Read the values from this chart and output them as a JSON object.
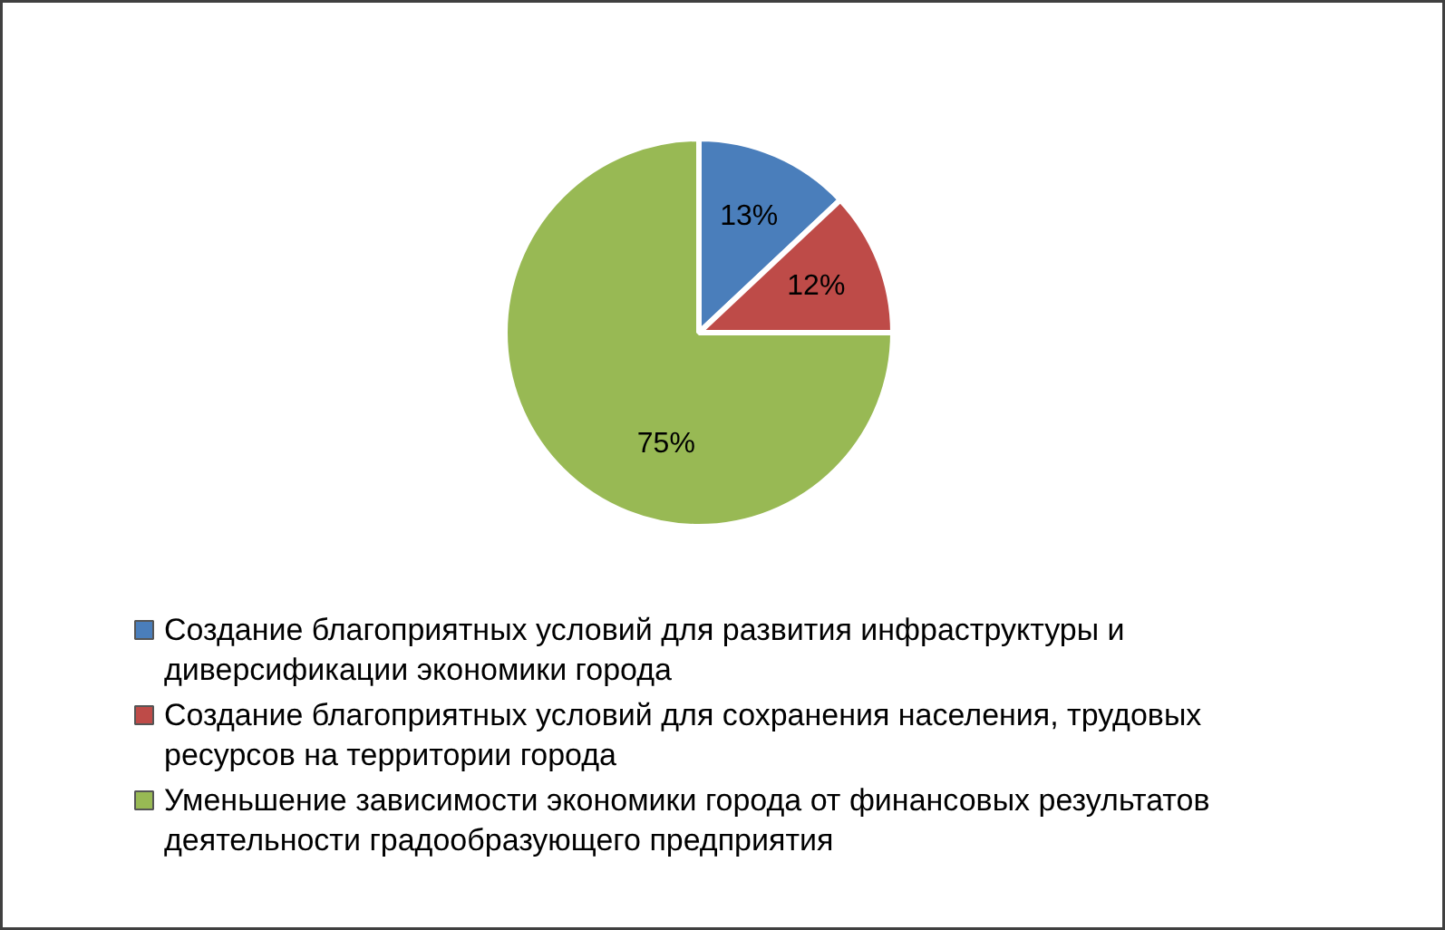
{
  "chart_data": {
    "type": "pie",
    "categories": [
      "Создание благоприятных условий для развития инфраструктуры и диверсификации экономики города",
      "Создание благоприятных условий для сохранения населения, трудовых ресурсов на территории города",
      "Уменьшение зависимости экономики города от финансовых результатов деятельности градообразующего предприятия"
    ],
    "values": [
      13,
      12,
      75
    ],
    "colors": [
      "#4a7ebb",
      "#be4b48",
      "#98b954"
    ],
    "value_labels": [
      "13%",
      "12%",
      "75%"
    ],
    "legend": "bottom"
  }
}
